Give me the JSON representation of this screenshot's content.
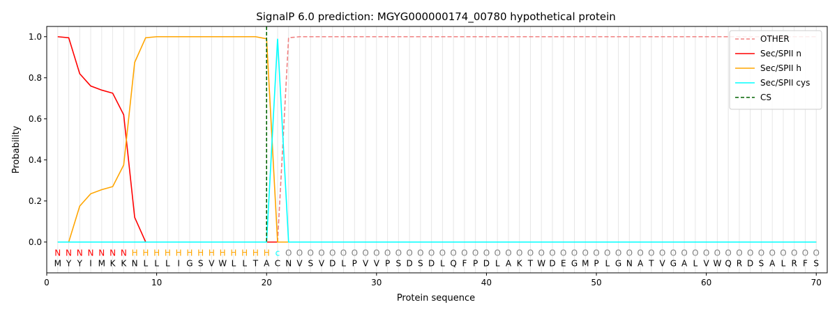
{
  "chart_data": {
    "type": "line",
    "title": "SignalP 6.0 prediction: MGYG000000174_00780 hypothetical protein",
    "xlabel": "Protein sequence",
    "ylabel": "Probability",
    "xlim": [
      0,
      71
    ],
    "ylim": [
      -0.15,
      1.05
    ],
    "xticks": [
      0,
      10,
      20,
      30,
      40,
      50,
      60,
      70
    ],
    "yticks": [
      0.0,
      0.2,
      0.4,
      0.6,
      0.8,
      1.0
    ],
    "grid": "vertical lines at each residue",
    "legend_position": "top-right",
    "positions": [
      1,
      2,
      3,
      4,
      5,
      6,
      7,
      8,
      9,
      10,
      11,
      12,
      13,
      14,
      15,
      16,
      17,
      18,
      19,
      20,
      21,
      22,
      23,
      24,
      25,
      26,
      27,
      28,
      29,
      30,
      31,
      32,
      33,
      34,
      35,
      36,
      37,
      38,
      39,
      40,
      41,
      42,
      43,
      44,
      45,
      46,
      47,
      48,
      49,
      50,
      51,
      52,
      53,
      54,
      55,
      56,
      57,
      58,
      59,
      60,
      61,
      62,
      63,
      64,
      65,
      66,
      67,
      68,
      69,
      70
    ],
    "sequence": [
      "M",
      "Y",
      "Y",
      "I",
      "M",
      "K",
      "K",
      "N",
      "L",
      "L",
      "L",
      "I",
      "G",
      "S",
      "V",
      "W",
      "L",
      "L",
      "T",
      "A",
      "C",
      "N",
      "V",
      "S",
      "V",
      "D",
      "L",
      "P",
      "V",
      "V",
      "P",
      "S",
      "D",
      "S",
      "D",
      "L",
      "Q",
      "F",
      "P",
      "D",
      "L",
      "A",
      "K",
      "T",
      "W",
      "D",
      "E",
      "G",
      "M",
      "P",
      "L",
      "G",
      "N",
      "A",
      "T",
      "V",
      "G",
      "A",
      "L",
      "V",
      "W",
      "Q",
      "R",
      "D",
      "S",
      "A",
      "L",
      "R",
      "F",
      "S"
    ],
    "labels": [
      "N",
      "N",
      "N",
      "N",
      "N",
      "N",
      "N",
      "H",
      "H",
      "H",
      "H",
      "H",
      "H",
      "H",
      "H",
      "H",
      "H",
      "H",
      "H",
      "H",
      "c",
      "O",
      "O",
      "O",
      "O",
      "O",
      "O",
      "O",
      "O",
      "O",
      "O",
      "O",
      "O",
      "O",
      "O",
      "O",
      "O",
      "O",
      "O",
      "O",
      "O",
      "O",
      "O",
      "O",
      "O",
      "O",
      "O",
      "O",
      "O",
      "O",
      "O",
      "O",
      "O",
      "O",
      "O",
      "O",
      "O",
      "O",
      "O",
      "O",
      "O",
      "O",
      "O",
      "O",
      "O",
      "O",
      "O",
      "O",
      "O",
      "O"
    ],
    "label_colors": {
      "N": "#ff0000",
      "H": "#ffa500",
      "c": "#00ffff",
      "O": "#808080"
    },
    "series": [
      {
        "name": "OTHER",
        "color": "#f08080",
        "dash": true,
        "values": [
          0,
          0,
          0,
          0,
          0,
          0,
          0,
          0,
          0,
          0,
          0,
          0,
          0,
          0,
          0,
          0,
          0,
          0,
          0,
          0,
          0,
          0.995,
          1,
          1,
          1,
          1,
          1,
          1,
          1,
          1,
          1,
          1,
          1,
          1,
          1,
          1,
          1,
          1,
          1,
          1,
          1,
          1,
          1,
          1,
          1,
          1,
          1,
          1,
          1,
          1,
          1,
          1,
          1,
          1,
          1,
          1,
          1,
          1,
          1,
          1,
          1,
          1,
          1,
          1,
          1,
          1,
          1,
          1,
          1,
          1
        ]
      },
      {
        "name": "Sec/SPII n",
        "color": "#ff0000",
        "dash": false,
        "values": [
          1.0,
          0.995,
          0.82,
          0.76,
          0.74,
          0.725,
          0.62,
          0.12,
          0.0,
          0,
          0,
          0,
          0,
          0,
          0,
          0,
          0,
          0,
          0,
          0,
          0,
          0,
          0,
          0,
          0,
          0,
          0,
          0,
          0,
          0,
          0,
          0,
          0,
          0,
          0,
          0,
          0,
          0,
          0,
          0,
          0,
          0,
          0,
          0,
          0,
          0,
          0,
          0,
          0,
          0,
          0,
          0,
          0,
          0,
          0,
          0,
          0,
          0,
          0,
          0,
          0,
          0,
          0,
          0,
          0,
          0,
          0,
          0,
          0,
          0
        ]
      },
      {
        "name": "Sec/SPII h",
        "color": "#ffa500",
        "dash": false,
        "values": [
          0,
          0,
          0.175,
          0.235,
          0.255,
          0.27,
          0.375,
          0.875,
          0.995,
          1,
          1,
          1,
          1,
          1,
          1,
          1,
          1,
          1,
          1,
          0.99,
          0.0,
          0,
          0,
          0,
          0,
          0,
          0,
          0,
          0,
          0,
          0,
          0,
          0,
          0,
          0,
          0,
          0,
          0,
          0,
          0,
          0,
          0,
          0,
          0,
          0,
          0,
          0,
          0,
          0,
          0,
          0,
          0,
          0,
          0,
          0,
          0,
          0,
          0,
          0,
          0,
          0,
          0,
          0,
          0,
          0,
          0,
          0,
          0,
          0,
          0
        ]
      },
      {
        "name": "Sec/SPII cys",
        "color": "#00ffff",
        "dash": false,
        "values": [
          0,
          0,
          0,
          0,
          0,
          0,
          0,
          0,
          0,
          0,
          0,
          0,
          0,
          0,
          0,
          0,
          0,
          0,
          0,
          0,
          0.99,
          0,
          0,
          0,
          0,
          0,
          0,
          0,
          0,
          0,
          0,
          0,
          0,
          0,
          0,
          0,
          0,
          0,
          0,
          0,
          0,
          0,
          0,
          0,
          0,
          0,
          0,
          0,
          0,
          0,
          0,
          0,
          0,
          0,
          0,
          0,
          0,
          0,
          0,
          0,
          0,
          0,
          0,
          0,
          0,
          0,
          0,
          0,
          0,
          0
        ]
      }
    ],
    "cs": {
      "name": "CS",
      "x": 20,
      "color": "#006400"
    }
  }
}
